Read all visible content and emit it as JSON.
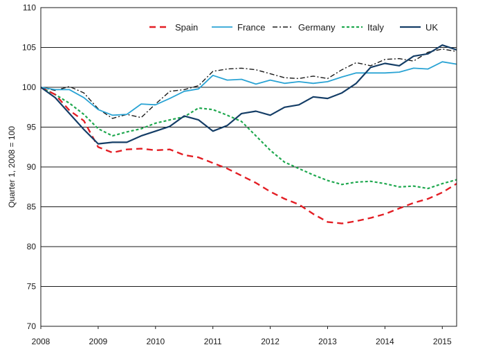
{
  "chart_data": {
    "type": "line",
    "ylabel": "Quarter 1, 2008 = 100",
    "ylim": [
      70,
      110
    ],
    "yticks": [
      70,
      75,
      80,
      85,
      90,
      95,
      100,
      105,
      110
    ],
    "xlim": [
      2008,
      2015.25
    ],
    "xticks": [
      {
        "value": 2008,
        "label": "2008"
      },
      {
        "value": 2009,
        "label": "2009"
      },
      {
        "value": 2010,
        "label": "2010"
      },
      {
        "value": 2011,
        "label": "2011"
      },
      {
        "value": 2012,
        "label": "2012"
      },
      {
        "value": 2013,
        "label": "2013"
      },
      {
        "value": 2014,
        "label": "2014"
      },
      {
        "value": 2015,
        "label": "2015"
      }
    ],
    "grid": "horizontal",
    "legend": "top",
    "x": [
      2008.0,
      2008.25,
      2008.5,
      2008.75,
      2009.0,
      2009.25,
      2009.5,
      2009.75,
      2010.0,
      2010.25,
      2010.5,
      2010.75,
      2011.0,
      2011.25,
      2011.5,
      2011.75,
      2012.0,
      2012.25,
      2012.5,
      2012.75,
      2013.0,
      2013.25,
      2013.5,
      2013.75,
      2014.0,
      2014.25,
      2014.5,
      2014.75,
      2015.0,
      2015.25
    ],
    "series": [
      {
        "name": "Spain",
        "color": "#e31e24",
        "style": "dashed",
        "width": 2.4,
        "values": [
          100,
          99.1,
          97.1,
          95.8,
          92.5,
          91.8,
          92.2,
          92.3,
          92.1,
          92.2,
          91.5,
          91.2,
          90.5,
          89.8,
          88.9,
          88.0,
          86.9,
          86.0,
          85.3,
          84.1,
          83.1,
          82.9,
          83.2,
          83.6,
          84.1,
          84.8,
          85.5,
          86.0,
          86.8,
          87.9
        ]
      },
      {
        "name": "France",
        "color": "#29a3d4",
        "style": "solid",
        "width": 1.8,
        "values": [
          100,
          99.7,
          99.7,
          98.7,
          97.2,
          96.5,
          96.6,
          97.9,
          97.8,
          98.6,
          99.5,
          99.8,
          101.5,
          100.9,
          101.0,
          100.4,
          100.9,
          100.5,
          100.7,
          100.5,
          100.7,
          101.3,
          101.8,
          101.8,
          101.8,
          101.9,
          102.4,
          102.3,
          103.2,
          102.9
        ]
      },
      {
        "name": "Germany",
        "color": "#1a1a1a",
        "style": "dashdot",
        "width": 1.4,
        "values": [
          100,
          99.6,
          100.1,
          99.3,
          97.3,
          96.1,
          96.6,
          96.2,
          97.9,
          99.5,
          99.7,
          100.2,
          102.0,
          102.3,
          102.4,
          102.2,
          101.7,
          101.2,
          101.1,
          101.4,
          101.1,
          102.2,
          103.1,
          102.7,
          103.5,
          103.6,
          103.3,
          104.4,
          104.8,
          104.5
        ]
      },
      {
        "name": "Italy",
        "color": "#1fa84f",
        "style": "dotted",
        "width": 2.2,
        "values": [
          100,
          99.1,
          98.0,
          96.6,
          94.8,
          93.9,
          94.4,
          94.8,
          95.5,
          95.9,
          96.3,
          97.4,
          97.2,
          96.5,
          95.7,
          93.9,
          92.1,
          90.6,
          89.8,
          89.0,
          88.3,
          87.8,
          88.1,
          88.2,
          87.9,
          87.5,
          87.6,
          87.3,
          87.9,
          88.4
        ]
      },
      {
        "name": "UK",
        "color": "#143d66",
        "style": "solid",
        "width": 2.2,
        "values": [
          100,
          98.7,
          96.7,
          94.7,
          92.9,
          93.1,
          93.1,
          93.9,
          94.5,
          95.1,
          96.4,
          95.9,
          94.5,
          95.2,
          96.7,
          97.0,
          96.5,
          97.5,
          97.8,
          98.8,
          98.6,
          99.3,
          100.5,
          102.5,
          103.0,
          102.7,
          103.9,
          104.2,
          105.3,
          104.7
        ]
      }
    ]
  }
}
